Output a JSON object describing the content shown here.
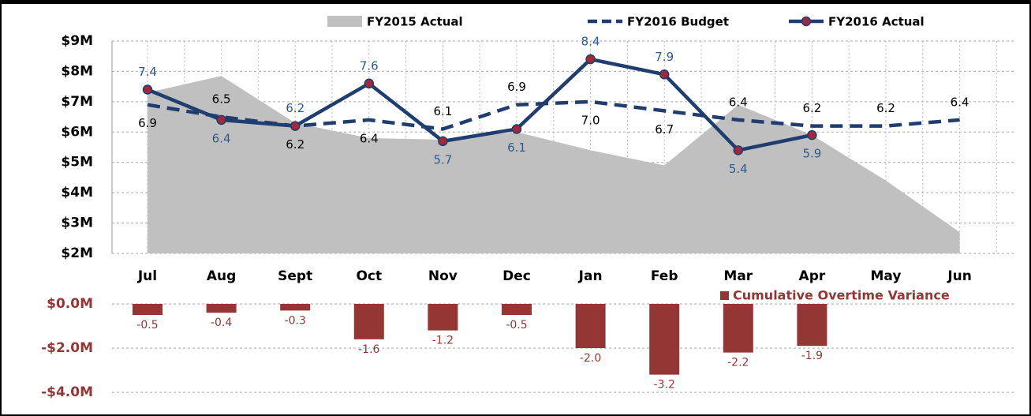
{
  "chart_data": [
    {
      "type": "line",
      "categories": [
        "Jul",
        "Aug",
        "Sept",
        "Oct",
        "Nov",
        "Dec",
        "Jan",
        "Feb",
        "Mar",
        "Apr",
        "May",
        "Jun"
      ],
      "series": [
        {
          "name": "FY2015 Actual",
          "style": "area",
          "color": "#c0c0c0",
          "values": [
            7.3,
            7.85,
            6.3,
            5.8,
            5.75,
            6.0,
            5.4,
            4.9,
            6.9,
            5.9,
            4.4,
            2.7
          ]
        },
        {
          "name": "FY2016 Budget",
          "style": "dashed",
          "color": "#1f3d6e",
          "values": [
            6.9,
            6.5,
            6.2,
            6.4,
            6.1,
            6.9,
            7.0,
            6.7,
            6.4,
            6.2,
            6.2,
            6.4
          ],
          "value_labels": [
            "6.9",
            "6.5",
            "6.2",
            "6.4",
            "6.1",
            "6.9",
            "7.0",
            "6.7",
            "6.4",
            "6.2",
            "6.2",
            "6.4"
          ]
        },
        {
          "name": "FY2016 Actual",
          "style": "solid",
          "color": "#1f3d6e",
          "marker_color": "#a0283a",
          "values": [
            7.4,
            6.4,
            6.2,
            7.6,
            5.7,
            6.1,
            8.4,
            7.9,
            5.4,
            5.9,
            null,
            null
          ],
          "value_labels": [
            "7.4",
            "6.4",
            "6.2",
            "7.6",
            "5.7",
            "6.1",
            "8.4",
            "7.9",
            "5.4",
            "5.9",
            null,
            null
          ]
        }
      ],
      "ylim": [
        2,
        9
      ],
      "yticks": [
        {
          "value": 2,
          "label": "$2M"
        },
        {
          "value": 3,
          "label": "$3M"
        },
        {
          "value": 4,
          "label": "$4M"
        },
        {
          "value": 5,
          "label": "$5M"
        },
        {
          "value": 6,
          "label": "$6M"
        },
        {
          "value": 7,
          "label": "$7M"
        },
        {
          "value": 8,
          "label": "$8M"
        },
        {
          "value": 9,
          "label": "$9M"
        }
      ],
      "grid": true
    },
    {
      "type": "bar",
      "series": [
        {
          "name": "Cumulative Overtime Variance",
          "color": "#943634",
          "values": [
            -0.5,
            -0.4,
            -0.3,
            -1.6,
            -1.2,
            -0.5,
            -2.0,
            -3.2,
            -2.2,
            -1.9,
            null,
            null
          ],
          "value_labels": [
            "-0.5",
            "-0.4",
            "-0.3",
            "-1.6",
            "-1.2",
            "-0.5",
            "-2.0",
            "-3.2",
            "-2.2",
            "-1.9",
            null,
            null
          ]
        }
      ],
      "ylim": [
        -4,
        0
      ],
      "yticks": [
        {
          "value": 0,
          "label": "$0.0M"
        },
        {
          "value": -2,
          "label": "-$2.0M"
        },
        {
          "value": -4,
          "label": "-$4.0M"
        }
      ],
      "grid": true
    }
  ]
}
